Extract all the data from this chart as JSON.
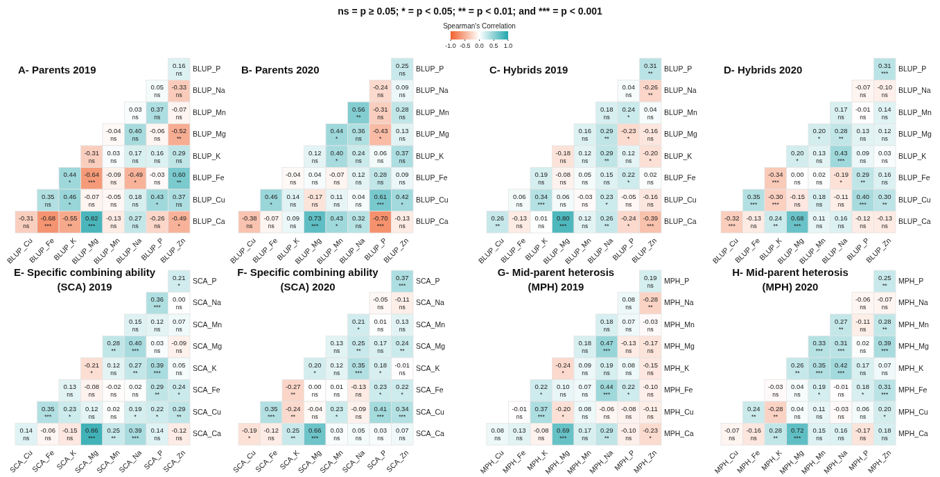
{
  "chart_data": [
    {
      "type": "heatmap",
      "title": "A- Parents 2019",
      "annotations": [
        "ns = p ≥ 0.05; * = p < 0.05; ** = p < 0.01; and *** = p < 0.001"
      ],
      "clabel": "Spearman's Correlation",
      "clim": [
        -1,
        1
      ],
      "cticks": [
        {
          "value": -1,
          "label": "-1.0"
        },
        -0.5,
        {
          "value": 0,
          "label": "0.0"
        },
        0.5,
        {
          "value": 1,
          "label": "1.0"
        }
      ],
      "categories": [
        "BLUP_Cu",
        "BLUP_Fe",
        "BLUP_K",
        "BLUP_Mg",
        "BLUP_Mn",
        "BLUP_Na",
        "BLUP_P",
        "BLUP_Zn"
      ],
      "y_categories": [
        "BLUP_P",
        "BLUP_Na",
        "BLUP_Mn",
        "BLUP_Mg",
        "BLUP_K",
        "BLUP_Fe",
        "BLUP_Cu",
        "BLUP_Ca"
      ],
      "cells": [
        [
          null,
          null,
          null,
          null,
          null,
          null,
          null,
          0.16
        ],
        [
          null,
          null,
          null,
          null,
          null,
          null,
          0.05,
          -0.33
        ],
        [
          null,
          null,
          null,
          null,
          null,
          0.03,
          0.37,
          -0.07
        ],
        [
          null,
          null,
          null,
          null,
          -0.04,
          0.4,
          -0.06,
          -0.52
        ],
        [
          null,
          null,
          null,
          -0.31,
          0.03,
          0.17,
          0.16,
          0.29
        ],
        [
          null,
          null,
          0.44,
          -0.64,
          -0.09,
          -0.49,
          -0.03,
          0.6
        ],
        [
          null,
          0.35,
          0.46,
          -0.07,
          -0.05,
          0.18,
          0.43,
          0.37
        ],
        [
          -0.31,
          -0.68,
          -0.55,
          0.82,
          -0.13,
          0.27,
          -0.26,
          -0.49
        ]
      ],
      "cell_labels": [
        [
          null,
          null,
          null,
          null,
          null,
          null,
          null,
          "0.16\nns"
        ],
        [
          null,
          null,
          null,
          null,
          null,
          null,
          "0.05\nns",
          "-0.33\nns"
        ],
        [
          null,
          null,
          null,
          null,
          null,
          "0.03\nns",
          "0.37\nns",
          "-0.07\nns"
        ],
        [
          null,
          null,
          null,
          null,
          "-0.04\nns",
          "0.40\nns",
          "-0.06\nns",
          "-0.52\n**"
        ],
        [
          null,
          null,
          null,
          "-0.31\nns",
          "0.03\nns",
          "0.17\nns",
          "0.16\nns",
          "0.29\nns"
        ],
        [
          null,
          null,
          "0.44\n*",
          "-0.64\n***",
          "-0.09\nns",
          "-0.49\n*",
          "-0.03\nns",
          "0.60\n**"
        ],
        [
          null,
          "0.35\nns",
          "0.46\n*",
          "-0.07\nns",
          "-0.05\nns",
          "0.18\nns",
          "0.43\n*",
          "0.37\nns"
        ],
        [
          "-0.31\nns",
          "-0.68\n***",
          "-0.55\n**",
          "0.82\n***",
          "-0.13\nns",
          "0.27\nns",
          "-0.26\nns",
          "-0.49\n*"
        ]
      ]
    },
    {
      "type": "heatmap",
      "title": "B- Parents 2020",
      "categories": [
        "BLUP_Cu",
        "BLUP_Fe",
        "BLUP_K",
        "BLUP_Mg",
        "BLUP_Mn",
        "BLUP_Na",
        "BLUP_P",
        "BLUP_Zn"
      ],
      "y_categories": [
        "BLUP_P",
        "BLUP_Na",
        "BLUP_Mn",
        "BLUP_Mg",
        "BLUP_K",
        "BLUP_Fe",
        "BLUP_Cu",
        "BLUP_Ca"
      ],
      "cells": [
        [
          null,
          null,
          null,
          null,
          null,
          null,
          null,
          0.25
        ],
        [
          null,
          null,
          null,
          null,
          null,
          null,
          -0.24,
          0.09
        ],
        [
          null,
          null,
          null,
          null,
          null,
          0.56,
          -0.31,
          0.28
        ],
        [
          null,
          null,
          null,
          null,
          0.44,
          0.36,
          -0.43,
          0.13
        ],
        [
          null,
          null,
          null,
          0.12,
          0.4,
          0.24,
          0.06,
          0.37
        ],
        [
          null,
          null,
          -0.04,
          0.04,
          -0.07,
          0.12,
          0.28,
          0.09
        ],
        [
          null,
          0.46,
          0.14,
          -0.17,
          0.11,
          0.04,
          0.61,
          0.42
        ],
        [
          -0.38,
          -0.07,
          0.09,
          0.73,
          0.43,
          0.32,
          -0.7,
          -0.13
        ]
      ],
      "cell_labels": [
        [
          null,
          null,
          null,
          null,
          null,
          null,
          null,
          "0.25\nns"
        ],
        [
          null,
          null,
          null,
          null,
          null,
          null,
          "-0.24\nns",
          "0.09\nns"
        ],
        [
          null,
          null,
          null,
          null,
          null,
          "0.56\n**",
          "-0.31\nns",
          "0.28\nns"
        ],
        [
          null,
          null,
          null,
          null,
          "0.44\n*",
          "0.36\nns",
          "-0.43\n*",
          "0.13\nns"
        ],
        [
          null,
          null,
          null,
          "0.12\nns",
          "0.40\n*",
          "0.24\nns",
          "0.06\nns",
          "0.37\nns"
        ],
        [
          null,
          null,
          "-0.04\nns",
          "0.04\nns",
          "-0.07\nns",
          "0.12\nns",
          "0.28\nns",
          "0.09\nns"
        ],
        [
          null,
          "0.46\n*",
          "0.14\nns",
          "-0.17\nns",
          "0.11\nns",
          "0.04\nns",
          "0.61\n***",
          "0.42\n*"
        ],
        [
          "-0.38\nns",
          "-0.07\nns",
          "0.09\nns",
          "0.73\n***",
          "0.43\n*",
          "0.32\nns",
          "-0.70\n***",
          "-0.13\nns"
        ]
      ]
    },
    {
      "type": "heatmap",
      "title": "C- Hybrids 2019",
      "categories": [
        "BLUP_Cu",
        "BLUP_Fe",
        "BLUP_K",
        "BLUP_Mg",
        "BLUP_Mn",
        "BLUP_Na",
        "BLUP_P",
        "BLUP_Zn"
      ],
      "y_categories": [
        "BLUP_P",
        "BLUP_Na",
        "BLUP_Mn",
        "BLUP_Mg",
        "BLUP_K",
        "BLUP_Fe",
        "BLUP_Cu",
        "BLUP_Ca"
      ],
      "cells": [
        [
          null,
          null,
          null,
          null,
          null,
          null,
          null,
          0.31
        ],
        [
          null,
          null,
          null,
          null,
          null,
          null,
          0.04,
          -0.26
        ],
        [
          null,
          null,
          null,
          null,
          null,
          0.18,
          0.24,
          0.04
        ],
        [
          null,
          null,
          null,
          null,
          0.16,
          0.29,
          -0.23,
          -0.16
        ],
        [
          null,
          null,
          null,
          -0.18,
          0.12,
          0.29,
          0.12,
          -0.2
        ],
        [
          null,
          null,
          0.19,
          -0.08,
          0.05,
          0.15,
          0.22,
          0.02
        ],
        [
          null,
          0.06,
          0.34,
          0.06,
          -0.03,
          0.23,
          -0.05,
          -0.16
        ],
        [
          0.26,
          -0.13,
          0.01,
          0.8,
          0.12,
          0.26,
          -0.24,
          -0.39
        ]
      ],
      "cell_labels": [
        [
          null,
          null,
          null,
          null,
          null,
          null,
          null,
          "0.31\n**"
        ],
        [
          null,
          null,
          null,
          null,
          null,
          null,
          "0.04\nns",
          "-0.26\n**"
        ],
        [
          null,
          null,
          null,
          null,
          null,
          "0.18\nns",
          "0.24\n*",
          "0.04\nns"
        ],
        [
          null,
          null,
          null,
          null,
          "0.16\nns",
          "0.29\n**",
          "-0.23\n*",
          "-0.16\nns"
        ],
        [
          null,
          null,
          null,
          "-0.18\nns",
          "0.12\nns",
          "0.29\n**",
          "0.12\nns",
          "-0.20\n*"
        ],
        [
          null,
          null,
          "0.19\nns",
          "-0.08\nns",
          "0.05\nns",
          "0.15\nns",
          "0.22\n*",
          "0.02\nns"
        ],
        [
          null,
          "0.06\nns",
          "0.34\n***",
          "0.06\nns",
          "-0.03\nns",
          "0.23\n*",
          "-0.05\nns",
          "-0.16\nns"
        ],
        [
          "0.26\n**",
          "-0.13\nns",
          "0.01\nns",
          "0.80\n***",
          "0.12\nns",
          "0.26\n**",
          "-0.24\n*",
          "-0.39\n***"
        ]
      ]
    },
    {
      "type": "heatmap",
      "title": "D- Hybrids 2020",
      "categories": [
        "BLUP_Cu",
        "BLUP_Fe",
        "BLUP_K",
        "BLUP_Mg",
        "BLUP_Mn",
        "BLUP_Na",
        "BLUP_P",
        "BLUP_Zn"
      ],
      "y_categories": [
        "BLUP_P",
        "BLUP_Na",
        "BLUP_Mn",
        "BLUP_Mg",
        "BLUP_K",
        "BLUP_Fe",
        "BLUP_Cu",
        "BLUP_Ca"
      ],
      "cells": [
        [
          null,
          null,
          null,
          null,
          null,
          null,
          null,
          0.31
        ],
        [
          null,
          null,
          null,
          null,
          null,
          null,
          -0.07,
          -0.1
        ],
        [
          null,
          null,
          null,
          null,
          null,
          0.17,
          -0.01,
          0.14
        ],
        [
          null,
          null,
          null,
          null,
          0.2,
          0.28,
          0.13,
          0.12
        ],
        [
          null,
          null,
          null,
          0.2,
          0.13,
          0.43,
          0.09,
          0.03
        ],
        [
          null,
          null,
          -0.34,
          0.0,
          0.02,
          -0.19,
          0.29,
          0.16
        ],
        [
          null,
          0.35,
          -0.3,
          -0.15,
          0.18,
          -0.11,
          0.4,
          0.3
        ],
        [
          -0.32,
          -0.13,
          0.24,
          0.68,
          0.11,
          0.16,
          -0.12,
          -0.13
        ]
      ],
      "cell_labels": [
        [
          null,
          null,
          null,
          null,
          null,
          null,
          null,
          "0.31\n***"
        ],
        [
          null,
          null,
          null,
          null,
          null,
          null,
          "-0.07\nns",
          "-0.10\nns"
        ],
        [
          null,
          null,
          null,
          null,
          null,
          "0.17\nns",
          "-0.01\nns",
          "0.14\nns"
        ],
        [
          null,
          null,
          null,
          null,
          "0.20\n*",
          "0.28\n**",
          "0.13\nns",
          "0.12\nns"
        ],
        [
          null,
          null,
          null,
          "0.20\n*",
          "0.13\nns",
          "0.43\n***",
          "0.09\nns",
          "0.03\nns"
        ],
        [
          null,
          null,
          "-0.34\n***",
          "0.00\nns",
          "0.02\nns",
          "-0.19\n*",
          "0.29\n**",
          "0.16\nns"
        ],
        [
          null,
          "0.35\n***",
          "-0.30\n***",
          "-0.15\nns",
          "0.18\nns",
          "-0.11\nns",
          "0.40\n***",
          "0.30\n**"
        ],
        [
          "-0.32\n***",
          "-0.13\nns",
          "0.24\n**",
          "0.68\n***",
          "0.11\nns",
          "0.16\nns",
          "-0.12\nns",
          "-0.13\nns"
        ]
      ]
    },
    {
      "type": "heatmap",
      "title": "E- Specific combining ability\n(SCA) 2019",
      "categories": [
        "SCA_Cu",
        "SCA_Fe",
        "SCA_K",
        "SCA_Mg",
        "SCA_Mn",
        "SCA_Na",
        "SCA_P",
        "SCA_Zn"
      ],
      "y_categories": [
        "SCA_P",
        "SCA_Na",
        "SCA_Mn",
        "SCA_Mg",
        "SCA_K",
        "SCA_Fe",
        "SCA_Cu",
        "SCA_Ca"
      ],
      "cells": [
        [
          null,
          null,
          null,
          null,
          null,
          null,
          null,
          0.21
        ],
        [
          null,
          null,
          null,
          null,
          null,
          null,
          0.36,
          0.0
        ],
        [
          null,
          null,
          null,
          null,
          null,
          0.15,
          0.12,
          0.07
        ],
        [
          null,
          null,
          null,
          null,
          0.28,
          0.4,
          0.03,
          -0.09
        ],
        [
          null,
          null,
          null,
          -0.21,
          0.12,
          0.27,
          0.39,
          0.05
        ],
        [
          null,
          null,
          0.13,
          -0.08,
          -0.02,
          0.02,
          0.29,
          0.24
        ],
        [
          null,
          0.35,
          0.23,
          0.12,
          0.02,
          0.19,
          0.22,
          0.29
        ],
        [
          0.14,
          -0.06,
          -0.15,
          0.86,
          0.25,
          0.39,
          0.14,
          -0.12
        ]
      ],
      "cell_labels": [
        [
          null,
          null,
          null,
          null,
          null,
          null,
          null,
          "0.21\n*"
        ],
        [
          null,
          null,
          null,
          null,
          null,
          null,
          "0.36\n***",
          "0.00\nns"
        ],
        [
          null,
          null,
          null,
          null,
          null,
          "0.15\nns",
          "0.12\nns",
          "0.07\nns"
        ],
        [
          null,
          null,
          null,
          null,
          "0.28\n**",
          "0.40\n***",
          "0.03\nns",
          "-0.09\nns"
        ],
        [
          null,
          null,
          null,
          "-0.21\n*",
          "0.12\nns",
          "0.27\n**",
          "0.39\n***",
          "0.05\nns"
        ],
        [
          null,
          null,
          "0.13\nns",
          "-0.08\nns",
          "-0.02\nns",
          "0.02\nns",
          "0.29\n**",
          "0.24\n*"
        ],
        [
          null,
          "0.35\n***",
          "0.23\n*",
          "0.12\nns",
          "0.02\nns",
          "0.19\n*",
          "0.22\n*",
          "0.29\n**"
        ],
        [
          "0.14\nns",
          "-0.06\nns",
          "-0.15\nns",
          "0.86\n***",
          "0.25\n**",
          "0.39\n***",
          "0.14\nns",
          "-0.12\nns"
        ]
      ]
    },
    {
      "type": "heatmap",
      "title": "F- Specific combining ability\n(SCA) 2020",
      "categories": [
        "SCA_Cu",
        "SCA_Fe",
        "SCA_K",
        "SCA_Mg",
        "SCA_Mn",
        "SCA_Na",
        "SCA_P",
        "SCA_Zn"
      ],
      "y_categories": [
        "SCA_P",
        "SCA_Na",
        "SCA_Mn",
        "SCA_Mg",
        "SCA_K",
        "SCA_Fe",
        "SCA_Cu",
        "SCA_Ca"
      ],
      "cells": [
        [
          null,
          null,
          null,
          null,
          null,
          null,
          null,
          0.37
        ],
        [
          null,
          null,
          null,
          null,
          null,
          null,
          -0.05,
          -0.11
        ],
        [
          null,
          null,
          null,
          null,
          null,
          0.21,
          0.01,
          0.13
        ],
        [
          null,
          null,
          null,
          null,
          0.13,
          0.25,
          0.17,
          0.24
        ],
        [
          null,
          null,
          null,
          0.2,
          0.12,
          0.35,
          0.18,
          -0.01
        ],
        [
          null,
          null,
          -0.27,
          0.0,
          0.01,
          -0.13,
          0.23,
          0.22
        ],
        [
          null,
          0.35,
          -0.24,
          -0.04,
          0.23,
          -0.09,
          0.41,
          0.34
        ],
        [
          -0.19,
          -0.12,
          0.25,
          0.66,
          0.03,
          0.05,
          0.03,
          0.07
        ]
      ],
      "cell_labels": [
        [
          null,
          null,
          null,
          null,
          null,
          null,
          null,
          "0.37\n***"
        ],
        [
          null,
          null,
          null,
          null,
          null,
          null,
          "-0.05\nns",
          "-0.11\nns"
        ],
        [
          null,
          null,
          null,
          null,
          null,
          "0.21\n*",
          "0.01\nns",
          "0.13\nns"
        ],
        [
          null,
          null,
          null,
          null,
          "0.13\nns",
          "0.25\n**",
          "0.17\nns",
          "0.24\n**"
        ],
        [
          null,
          null,
          null,
          "0.20\n*",
          "0.12\nns",
          "0.35\n***",
          "0.18\n*",
          "-0.01\nns"
        ],
        [
          null,
          null,
          "-0.27\n**",
          "0.00\nns",
          "0.01\nns",
          "-0.13\nns",
          "0.23\n*",
          "0.22\n*"
        ],
        [
          null,
          "0.35\n***",
          "-0.24\n**",
          "-0.04\nns",
          "0.23\n*",
          "-0.09\nns",
          "0.41\n***",
          "0.34\n***"
        ],
        [
          "-0.19\n*",
          "-0.12\nns",
          "0.25\n**",
          "0.66\n***",
          "0.03\nns",
          "0.05\nns",
          "0.03\nns",
          "0.07\nns"
        ]
      ]
    },
    {
      "type": "heatmap",
      "title": "G- Mid-parent heterosis\n(MPH) 2019",
      "categories": [
        "MPH_Cu",
        "MPH_Fe",
        "MPH_K",
        "MPH_Mg",
        "MPH_Mn",
        "MPH_Na",
        "MPH_P",
        "MPH_Zn"
      ],
      "y_categories": [
        "MPH_P",
        "MPH_Na",
        "MPH_Mn",
        "MPH_Mg",
        "MPH_K",
        "MPH_Fe",
        "MPH_Cu",
        "MPH_Ca"
      ],
      "cells": [
        [
          null,
          null,
          null,
          null,
          null,
          null,
          null,
          0.19
        ],
        [
          null,
          null,
          null,
          null,
          null,
          null,
          0.08,
          -0.28
        ],
        [
          null,
          null,
          null,
          null,
          null,
          0.18,
          0.07,
          -0.03
        ],
        [
          null,
          null,
          null,
          null,
          0.18,
          0.47,
          -0.13,
          -0.17
        ],
        [
          null,
          null,
          null,
          -0.24,
          0.09,
          0.19,
          0.08,
          -0.15
        ],
        [
          null,
          null,
          0.22,
          0.1,
          0.07,
          0.44,
          0.22,
          -0.1
        ],
        [
          null,
          -0.01,
          0.37,
          -0.2,
          0.08,
          -0.06,
          -0.08,
          -0.11
        ],
        [
          0.08,
          0.13,
          -0.08,
          0.69,
          0.17,
          0.29,
          -0.1,
          -0.23
        ]
      ],
      "cell_labels": [
        [
          null,
          null,
          null,
          null,
          null,
          null,
          null,
          "0.19\nns"
        ],
        [
          null,
          null,
          null,
          null,
          null,
          null,
          "0.08\nns",
          "-0.28\n**"
        ],
        [
          null,
          null,
          null,
          null,
          null,
          "0.18\nns",
          "0.07\nns",
          "-0.03\nns"
        ],
        [
          null,
          null,
          null,
          null,
          "0.18\nns",
          "0.47\n***",
          "-0.13\nns",
          "-0.17\nns"
        ],
        [
          null,
          null,
          null,
          "-0.24\n*",
          "0.09\nns",
          "0.19\nns",
          "0.08\nns",
          "-0.15\nns"
        ],
        [
          null,
          null,
          "0.22\n*",
          "0.10\nns",
          "0.07\nns",
          "0.44\n***",
          "0.22\n*",
          "-0.10\nns"
        ],
        [
          null,
          "-0.01\nns",
          "0.37\n***",
          "-0.20\n*",
          "0.08\nns",
          "-0.06\nns",
          "-0.08\nns",
          "-0.11\nns"
        ],
        [
          "0.08\nns",
          "0.13\nns",
          "-0.08\nns",
          "0.69\n***",
          "0.17\nns",
          "0.29\n**",
          "-0.10\nns",
          "-0.23\n*"
        ]
      ]
    },
    {
      "type": "heatmap",
      "title": "H- Mid-parent heterosis\n(MPH) 2020",
      "categories": [
        "MPH_Cu",
        "MPH_Fe",
        "MPH_K",
        "MPH_Mg",
        "MPH_Mn",
        "MPH_Na",
        "MPH_P",
        "MPH_Zn"
      ],
      "y_categories": [
        "MPH_P",
        "MPH_Na",
        "MPH_Mn",
        "MPH_Mg",
        "MPH_K",
        "MPH_Fe",
        "MPH_Cu",
        "MPH_Ca"
      ],
      "cells": [
        [
          null,
          null,
          null,
          null,
          null,
          null,
          null,
          0.25
        ],
        [
          null,
          null,
          null,
          null,
          null,
          null,
          -0.06,
          -0.07
        ],
        [
          null,
          null,
          null,
          null,
          null,
          0.27,
          -0.11,
          0.28
        ],
        [
          null,
          null,
          null,
          null,
          0.33,
          0.31,
          0.02,
          0.39
        ],
        [
          null,
          null,
          null,
          0.26,
          0.35,
          0.42,
          0.17,
          0.07
        ],
        [
          null,
          null,
          -0.03,
          0.04,
          0.19,
          -0.01,
          0.18,
          0.31
        ],
        [
          null,
          0.24,
          -0.28,
          0.04,
          0.11,
          -0.03,
          0.06,
          0.2
        ],
        [
          -0.07,
          -0.16,
          0.28,
          0.72,
          0.15,
          0.16,
          -0.17,
          0.18
        ]
      ],
      "cell_labels": [
        [
          null,
          null,
          null,
          null,
          null,
          null,
          null,
          "0.25\n**"
        ],
        [
          null,
          null,
          null,
          null,
          null,
          null,
          "-0.06\nns",
          "-0.07\nns"
        ],
        [
          null,
          null,
          null,
          null,
          null,
          "0.27\n**",
          "-0.11\nns",
          "0.28\n**"
        ],
        [
          null,
          null,
          null,
          null,
          "0.33\n***",
          "0.31\n***",
          "0.02\nns",
          "0.39\n***"
        ],
        [
          null,
          null,
          null,
          "0.26\n**",
          "0.35\n***",
          "0.42\n***",
          "0.17\nns",
          "0.07\nns"
        ],
        [
          null,
          null,
          "-0.03\nns",
          "0.04\nns",
          "0.19\n*",
          "-0.01\nns",
          "0.18\n*",
          "0.31\n***"
        ],
        [
          null,
          "0.24\n**",
          "-0.28\n**",
          "0.04\nns",
          "0.11\nns",
          "-0.03\nns",
          "0.06\nns",
          "0.20\n*"
        ],
        [
          "-0.07\nns",
          "-0.16\nns",
          "0.28\n**",
          "0.72\n***",
          "0.15\nns",
          "0.16\nns",
          "-0.17\nns",
          "0.18\nns"
        ]
      ]
    }
  ]
}
